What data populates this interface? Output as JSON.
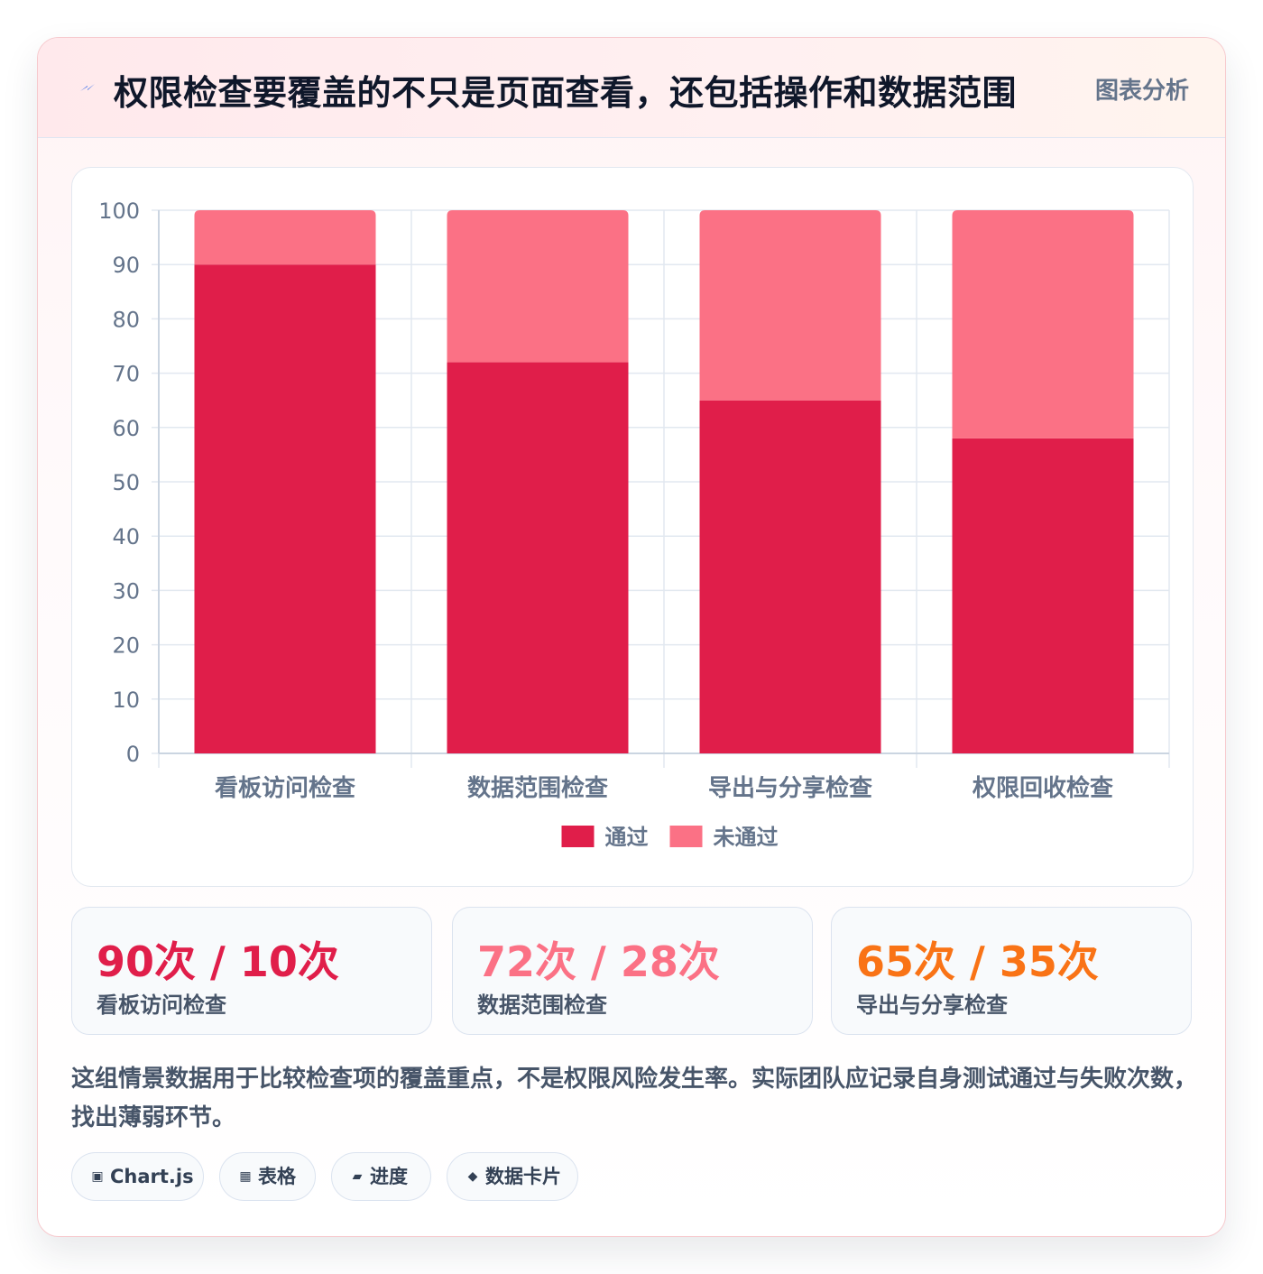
{
  "header": {
    "title": "权限检查要覆盖的不只是页面查看，还包括操作和数据范围",
    "tag": "图表分析",
    "icon": "lightning-icon"
  },
  "chart_data": {
    "type": "bar",
    "stacked": true,
    "categories": [
      "看板访问检查",
      "数据范围检查",
      "导出与分享检查",
      "权限回收检查"
    ],
    "series": [
      {
        "name": "通过",
        "values": [
          90,
          72,
          65,
          58
        ],
        "color": "#e01e4a"
      },
      {
        "name": "未通过",
        "values": [
          10,
          28,
          35,
          42
        ],
        "color": "#fb7185"
      }
    ],
    "ylim": [
      0,
      100
    ],
    "yticks": [
      "0",
      "10",
      "20",
      "30",
      "40",
      "50",
      "60",
      "70",
      "80",
      "90",
      "100"
    ],
    "grid": true,
    "legend_position": "bottom"
  },
  "stats": [
    {
      "value": "90次 / 10次",
      "label": "看板访问检查",
      "color": "#e01e4a"
    },
    {
      "value": "72次 / 28次",
      "label": "数据范围检查",
      "color": "#fb7185"
    },
    {
      "value": "65次 / 35次",
      "label": "导出与分享检查",
      "color": "#f97316"
    }
  ],
  "note": "这组情景数据用于比较检查项的覆盖重点，不是权限风险发生率。实际团队应记录自身测试通过与失败次数，找出薄弱环节。",
  "chips": [
    {
      "label": "Chart.js",
      "icon": "chart-icon",
      "glyph": "▣"
    },
    {
      "label": "表格",
      "icon": "table-icon",
      "glyph": "▦"
    },
    {
      "label": "进度",
      "icon": "progress-icon",
      "glyph": "▰"
    },
    {
      "label": "数据卡片",
      "icon": "card-icon",
      "glyph": "◆"
    }
  ]
}
